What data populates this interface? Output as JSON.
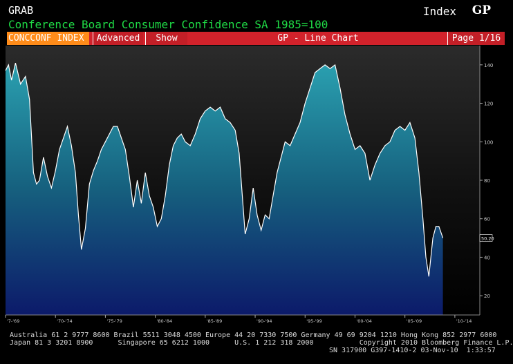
{
  "header": {
    "grab": "GRAB",
    "title": "Conference Board Consumer Confidence SA 1985=100",
    "index": "Index",
    "gp": "GP"
  },
  "tabs": {
    "ticker": "CONCCONF INDEX",
    "advanced": "Advanced",
    "show": "Show",
    "chart_type": "GP - Line Chart",
    "page": "Page 1/16"
  },
  "footer": {
    "line1": "Australia 61 2 9777 8600 Brazil 5511 3048 4500 Europe 44 20 7330 7500 Germany 49 69 9204 1210 Hong Kong 852 2977 6000",
    "line2": "Japan 81 3 3201 8900      Singapore 65 6212 1000      U.S. 1 212 318 2000           Copyright 2010 Bloomberg Finance L.P.",
    "line3": "SN 317900 G397-1410-2 03-Nov-10  1:33:57"
  },
  "colors": {
    "title": "#1fdc46",
    "tabbar": "#d2222b",
    "ticker_tab": "#ff8c1a",
    "line": "#ffffff",
    "fill_top": "#2aa0b0",
    "fill_bottom": "#0c1a6a"
  },
  "chart_data": {
    "type": "area",
    "title": "",
    "xlabel": "",
    "ylabel": "",
    "ylim": [
      10,
      150
    ],
    "yticks": [
      20,
      40,
      60,
      80,
      100,
      120,
      140
    ],
    "xtick_labels": [
      "'7-'69",
      "'70-'74",
      "'75-'79",
      "'80-'84",
      "'85-'89",
      "'90-'94",
      "'95-'99",
      "'00-'04",
      "'05-'09",
      "'10-'14"
    ],
    "last_value_label": "50.20",
    "grid": false,
    "x": [
      1967.0,
      1967.3,
      1967.6,
      1968.0,
      1968.5,
      1969.0,
      1969.4,
      1969.8,
      1970.1,
      1970.4,
      1970.8,
      1971.2,
      1971.6,
      1972.0,
      1972.4,
      1972.8,
      1973.2,
      1973.6,
      1974.0,
      1974.3,
      1974.6,
      1975.0,
      1975.4,
      1975.8,
      1976.2,
      1976.6,
      1977.0,
      1977.4,
      1977.8,
      1978.2,
      1978.6,
      1979.0,
      1979.4,
      1979.8,
      1980.2,
      1980.6,
      1981.0,
      1981.4,
      1981.8,
      1982.2,
      1982.6,
      1983.0,
      1983.4,
      1983.8,
      1984.2,
      1984.6,
      1985.0,
      1985.5,
      1986.0,
      1986.5,
      1987.0,
      1987.5,
      1988.0,
      1988.5,
      1989.0,
      1989.5,
      1990.0,
      1990.4,
      1990.8,
      1991.0,
      1991.4,
      1991.8,
      1992.2,
      1992.6,
      1993.0,
      1993.4,
      1993.8,
      1994.2,
      1994.6,
      1995.0,
      1995.5,
      1996.0,
      1996.5,
      1997.0,
      1997.5,
      1998.0,
      1998.5,
      1999.0,
      1999.5,
      2000.0,
      2000.5,
      2001.0,
      2001.5,
      2002.0,
      2002.5,
      2003.0,
      2003.5,
      2004.0,
      2004.5,
      2005.0,
      2005.5,
      2006.0,
      2006.5,
      2007.0,
      2007.5,
      2008.0,
      2008.4,
      2008.8,
      2009.1,
      2009.4,
      2009.8,
      2010.1,
      2010.4,
      2010.8
    ],
    "values": [
      137,
      140,
      132,
      141,
      130,
      134,
      122,
      84,
      78,
      80,
      92,
      82,
      76,
      85,
      96,
      102,
      108,
      98,
      84,
      62,
      44,
      55,
      78,
      85,
      90,
      96,
      100,
      104,
      108,
      108,
      102,
      96,
      82,
      66,
      80,
      68,
      84,
      72,
      66,
      56,
      60,
      72,
      88,
      98,
      102,
      104,
      100,
      98,
      104,
      112,
      116,
      118,
      116,
      118,
      112,
      110,
      106,
      94,
      66,
      52,
      60,
      76,
      62,
      54,
      62,
      60,
      72,
      84,
      92,
      100,
      98,
      104,
      110,
      120,
      128,
      136,
      138,
      140,
      138,
      140,
      128,
      114,
      104,
      96,
      98,
      94,
      80,
      88,
      94,
      98,
      100,
      106,
      108,
      106,
      110,
      102,
      84,
      60,
      40,
      30,
      50,
      56,
      56,
      50
    ]
  }
}
